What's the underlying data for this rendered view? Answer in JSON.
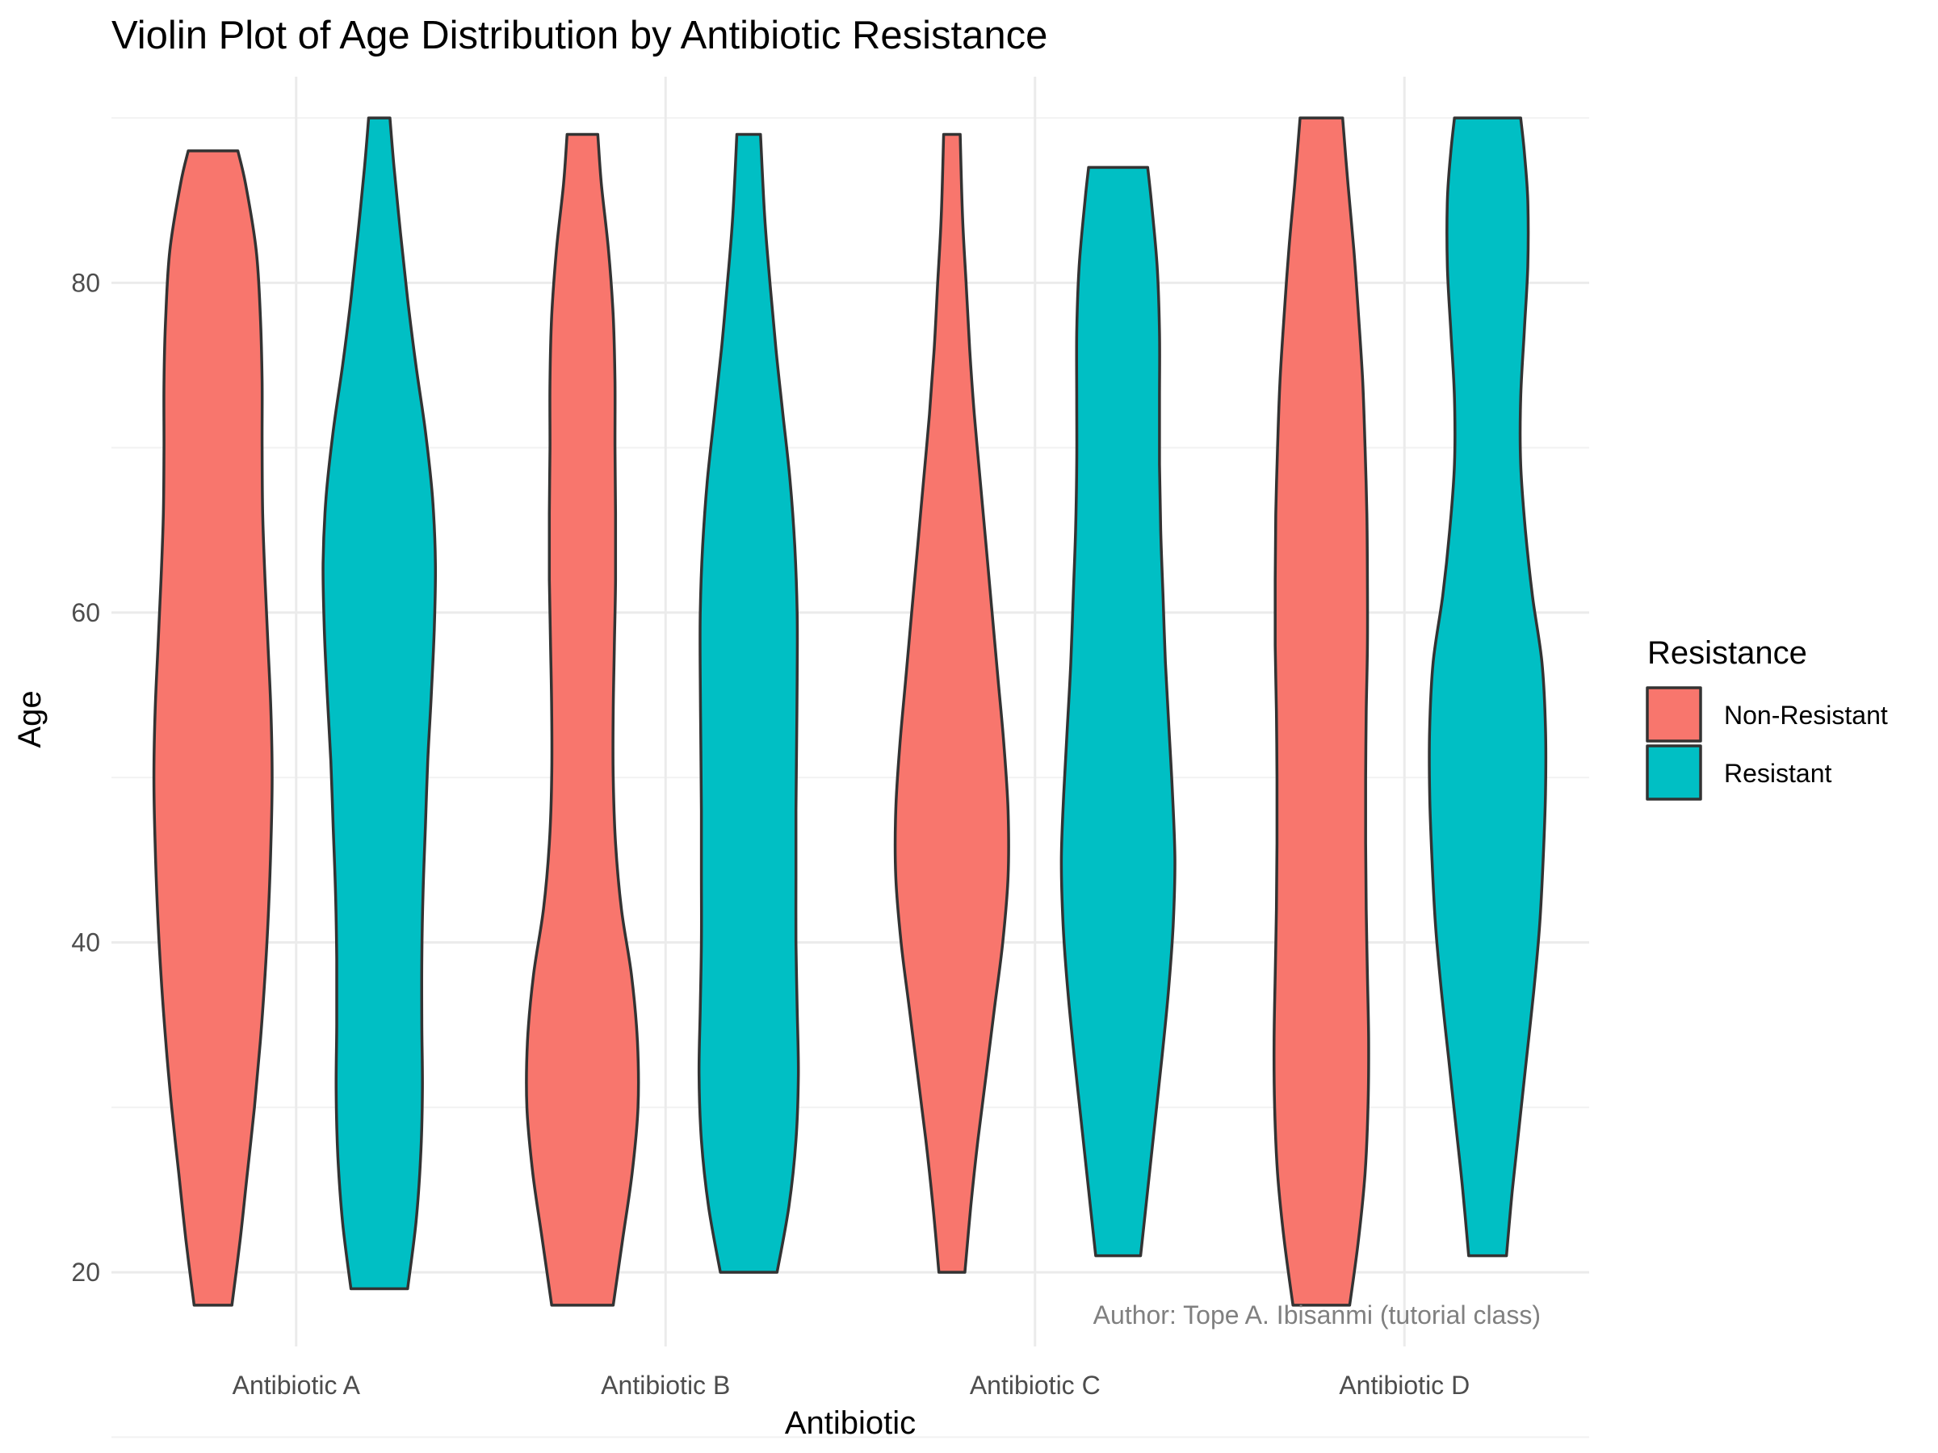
{
  "chart_data": {
    "type": "violin",
    "title": "Violin Plot of Age Distribution by Antibiotic Resistance",
    "xlabel": "Antibiotic",
    "ylabel": "Age",
    "caption": "Author: Tope A. Ibisanmi (tutorial class)",
    "categories": [
      "Antibiotic A",
      "Antibiotic B",
      "Antibiotic C",
      "Antibiotic D"
    ],
    "yticks": [
      20,
      40,
      60,
      80
    ],
    "ylim": [
      15.5,
      92.5
    ],
    "grid": true,
    "legend": {
      "title": "Resistance",
      "position": "right"
    },
    "series": [
      {
        "name": "Non-Resistant",
        "color": "#F8766D",
        "violins": [
          {
            "category": "Antibiotic A",
            "min": 18,
            "max": 88,
            "profile": [
              [
                18,
                0.32
              ],
              [
                22,
                0.46
              ],
              [
                26,
                0.58
              ],
              [
                30,
                0.7
              ],
              [
                34,
                0.8
              ],
              [
                38,
                0.88
              ],
              [
                42,
                0.94
              ],
              [
                46,
                0.98
              ],
              [
                50,
                1.0
              ],
              [
                54,
                0.98
              ],
              [
                58,
                0.93
              ],
              [
                62,
                0.88
              ],
              [
                66,
                0.84
              ],
              [
                70,
                0.83
              ],
              [
                74,
                0.83
              ],
              [
                78,
                0.8
              ],
              [
                82,
                0.73
              ],
              [
                86,
                0.55
              ],
              [
                88,
                0.42
              ]
            ]
          },
          {
            "category": "Antibiotic B",
            "min": 18,
            "max": 89,
            "profile": [
              [
                18,
                0.52
              ],
              [
                22,
                0.68
              ],
              [
                26,
                0.84
              ],
              [
                30,
                0.94
              ],
              [
                34,
                0.93
              ],
              [
                38,
                0.83
              ],
              [
                42,
                0.66
              ],
              [
                46,
                0.56
              ],
              [
                50,
                0.52
              ],
              [
                54,
                0.52
              ],
              [
                58,
                0.54
              ],
              [
                62,
                0.56
              ],
              [
                66,
                0.56
              ],
              [
                70,
                0.55
              ],
              [
                74,
                0.55
              ],
              [
                78,
                0.52
              ],
              [
                82,
                0.44
              ],
              [
                86,
                0.32
              ],
              [
                89,
                0.26
              ]
            ]
          },
          {
            "category": "Antibiotic C",
            "min": 20,
            "max": 89,
            "profile": [
              [
                20,
                0.22
              ],
              [
                24,
                0.32
              ],
              [
                28,
                0.44
              ],
              [
                32,
                0.58
              ],
              [
                36,
                0.72
              ],
              [
                40,
                0.86
              ],
              [
                44,
                0.95
              ],
              [
                48,
                0.95
              ],
              [
                52,
                0.88
              ],
              [
                56,
                0.78
              ],
              [
                60,
                0.68
              ],
              [
                64,
                0.58
              ],
              [
                68,
                0.48
              ],
              [
                72,
                0.38
              ],
              [
                76,
                0.3
              ],
              [
                80,
                0.24
              ],
              [
                84,
                0.18
              ],
              [
                89,
                0.14
              ]
            ]
          },
          {
            "category": "Antibiotic D",
            "min": 18,
            "max": 90,
            "profile": [
              [
                18,
                0.48
              ],
              [
                22,
                0.63
              ],
              [
                26,
                0.74
              ],
              [
                30,
                0.79
              ],
              [
                34,
                0.8
              ],
              [
                38,
                0.78
              ],
              [
                42,
                0.76
              ],
              [
                46,
                0.75
              ],
              [
                50,
                0.75
              ],
              [
                54,
                0.76
              ],
              [
                58,
                0.78
              ],
              [
                62,
                0.78
              ],
              [
                66,
                0.77
              ],
              [
                70,
                0.74
              ],
              [
                74,
                0.7
              ],
              [
                78,
                0.63
              ],
              [
                82,
                0.55
              ],
              [
                86,
                0.45
              ],
              [
                90,
                0.36
              ]
            ]
          }
        ]
      },
      {
        "name": "Resistant",
        "color": "#00BFC4",
        "violins": [
          {
            "category": "Antibiotic A",
            "min": 19,
            "max": 90,
            "profile": [
              [
                19,
                0.48
              ],
              [
                23,
                0.62
              ],
              [
                27,
                0.7
              ],
              [
                31,
                0.73
              ],
              [
                35,
                0.72
              ],
              [
                39,
                0.72
              ],
              [
                43,
                0.74
              ],
              [
                47,
                0.78
              ],
              [
                51,
                0.82
              ],
              [
                55,
                0.88
              ],
              [
                59,
                0.93
              ],
              [
                63,
                0.95
              ],
              [
                67,
                0.9
              ],
              [
                71,
                0.78
              ],
              [
                75,
                0.62
              ],
              [
                79,
                0.48
              ],
              [
                83,
                0.36
              ],
              [
                87,
                0.25
              ],
              [
                90,
                0.18
              ]
            ]
          },
          {
            "category": "Antibiotic B",
            "min": 20,
            "max": 89,
            "profile": [
              [
                20,
                0.48
              ],
              [
                24,
                0.68
              ],
              [
                28,
                0.8
              ],
              [
                32,
                0.84
              ],
              [
                36,
                0.82
              ],
              [
                40,
                0.8
              ],
              [
                44,
                0.8
              ],
              [
                48,
                0.8
              ],
              [
                52,
                0.81
              ],
              [
                56,
                0.82
              ],
              [
                60,
                0.82
              ],
              [
                64,
                0.78
              ],
              [
                68,
                0.7
              ],
              [
                72,
                0.58
              ],
              [
                76,
                0.46
              ],
              [
                80,
                0.36
              ],
              [
                84,
                0.27
              ],
              [
                89,
                0.2
              ]
            ]
          },
          {
            "category": "Antibiotic C",
            "min": 21,
            "max": 87,
            "profile": [
              [
                21,
                0.38
              ],
              [
                25,
                0.5
              ],
              [
                29,
                0.62
              ],
              [
                33,
                0.74
              ],
              [
                37,
                0.85
              ],
              [
                41,
                0.93
              ],
              [
                45,
                0.96
              ],
              [
                49,
                0.92
              ],
              [
                53,
                0.86
              ],
              [
                57,
                0.8
              ],
              [
                61,
                0.76
              ],
              [
                65,
                0.72
              ],
              [
                69,
                0.7
              ],
              [
                73,
                0.7
              ],
              [
                77,
                0.7
              ],
              [
                81,
                0.66
              ],
              [
                85,
                0.56
              ],
              [
                87,
                0.5
              ]
            ]
          },
          {
            "category": "Antibiotic D",
            "min": 21,
            "max": 90,
            "profile": [
              [
                21,
                0.32
              ],
              [
                25,
                0.42
              ],
              [
                29,
                0.54
              ],
              [
                33,
                0.66
              ],
              [
                37,
                0.78
              ],
              [
                41,
                0.88
              ],
              [
                45,
                0.94
              ],
              [
                49,
                0.98
              ],
              [
                53,
                0.98
              ],
              [
                57,
                0.92
              ],
              [
                61,
                0.76
              ],
              [
                65,
                0.64
              ],
              [
                69,
                0.56
              ],
              [
                73,
                0.56
              ],
              [
                77,
                0.62
              ],
              [
                81,
                0.68
              ],
              [
                85,
                0.68
              ],
              [
                88,
                0.62
              ],
              [
                90,
                0.56
              ]
            ]
          }
        ]
      }
    ]
  }
}
